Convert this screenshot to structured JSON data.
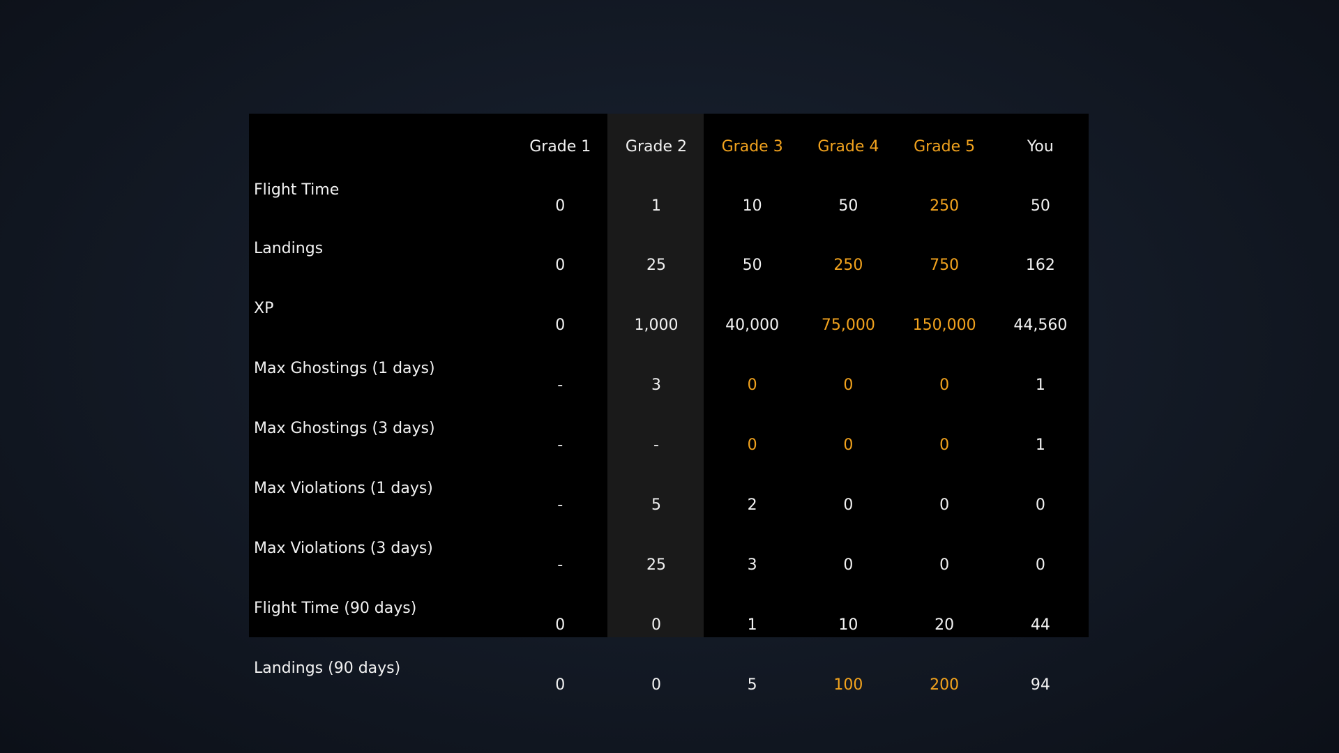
{
  "colors": {
    "accent": "#f2a31e",
    "text": "#f2f2f2",
    "panel_bg": "#000000",
    "highlight_col_bg": "#1a1a1a"
  },
  "header": {
    "columns": [
      {
        "label": "Grade 1",
        "accent": false
      },
      {
        "label": "Grade 2",
        "accent": false
      },
      {
        "label": "Grade 3",
        "accent": true
      },
      {
        "label": "Grade 4",
        "accent": true
      },
      {
        "label": "Grade 5",
        "accent": true
      },
      {
        "label": "You",
        "accent": false
      }
    ]
  },
  "rows": [
    {
      "label": "Flight Time",
      "cells": [
        {
          "v": "0",
          "a": false
        },
        {
          "v": "1",
          "a": false
        },
        {
          "v": "10",
          "a": false
        },
        {
          "v": "50",
          "a": false
        },
        {
          "v": "250",
          "a": true
        },
        {
          "v": "50",
          "a": false
        }
      ]
    },
    {
      "label": "Landings",
      "cells": [
        {
          "v": "0",
          "a": false
        },
        {
          "v": "25",
          "a": false
        },
        {
          "v": "50",
          "a": false
        },
        {
          "v": "250",
          "a": true
        },
        {
          "v": "750",
          "a": true
        },
        {
          "v": "162",
          "a": false
        }
      ]
    },
    {
      "label": "XP",
      "cells": [
        {
          "v": "0",
          "a": false
        },
        {
          "v": "1,000",
          "a": false
        },
        {
          "v": "40,000",
          "a": false
        },
        {
          "v": "75,000",
          "a": true
        },
        {
          "v": "150,000",
          "a": true
        },
        {
          "v": "44,560",
          "a": false
        }
      ]
    },
    {
      "label": "Max Ghostings (1 days)",
      "cells": [
        {
          "v": "-",
          "a": false
        },
        {
          "v": "3",
          "a": false
        },
        {
          "v": "0",
          "a": true
        },
        {
          "v": "0",
          "a": true
        },
        {
          "v": "0",
          "a": true
        },
        {
          "v": "1",
          "a": false
        }
      ]
    },
    {
      "label": "Max Ghostings (3 days)",
      "cells": [
        {
          "v": "-",
          "a": false
        },
        {
          "v": "-",
          "a": false
        },
        {
          "v": "0",
          "a": true
        },
        {
          "v": "0",
          "a": true
        },
        {
          "v": "0",
          "a": true
        },
        {
          "v": "1",
          "a": false
        }
      ]
    },
    {
      "label": "Max Violations (1 days)",
      "cells": [
        {
          "v": "-",
          "a": false
        },
        {
          "v": "5",
          "a": false
        },
        {
          "v": "2",
          "a": false
        },
        {
          "v": "0",
          "a": false
        },
        {
          "v": "0",
          "a": false
        },
        {
          "v": "0",
          "a": false
        }
      ]
    },
    {
      "label": "Max Violations (3 days)",
      "cells": [
        {
          "v": "-",
          "a": false
        },
        {
          "v": "25",
          "a": false
        },
        {
          "v": "3",
          "a": false
        },
        {
          "v": "0",
          "a": false
        },
        {
          "v": "0",
          "a": false
        },
        {
          "v": "0",
          "a": false
        }
      ]
    },
    {
      "label": "Flight Time (90 days)",
      "cells": [
        {
          "v": "0",
          "a": false
        },
        {
          "v": "0",
          "a": false
        },
        {
          "v": "1",
          "a": false
        },
        {
          "v": "10",
          "a": false
        },
        {
          "v": "20",
          "a": false
        },
        {
          "v": "44",
          "a": false
        }
      ]
    },
    {
      "label": "Landings (90 days)",
      "cells": [
        {
          "v": "0",
          "a": false
        },
        {
          "v": "0",
          "a": false
        },
        {
          "v": "5",
          "a": false
        },
        {
          "v": "100",
          "a": true
        },
        {
          "v": "200",
          "a": true
        },
        {
          "v": "94",
          "a": false
        }
      ]
    }
  ]
}
